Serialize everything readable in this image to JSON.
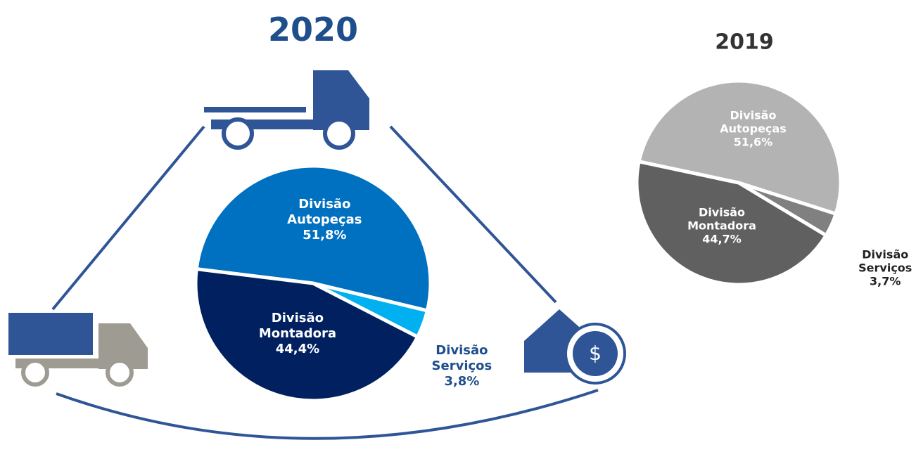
{
  "chart_data": [
    {
      "type": "pie",
      "title": "2020",
      "categories": [
        "Divisão Autopeças",
        "Divisão Serviços",
        "Divisão Montadora"
      ],
      "values": [
        51.8,
        3.8,
        44.4
      ],
      "value_labels": [
        "51,8%",
        "3,8%",
        "44,4%"
      ],
      "colors": [
        "#0070c0",
        "#00b0f0",
        "#002060"
      ]
    },
    {
      "type": "pie",
      "title": "2019",
      "categories": [
        "Divisão Autopeças",
        "Divisão Serviços",
        "Divisão Montadora"
      ],
      "values": [
        51.6,
        3.7,
        44.7
      ],
      "value_labels": [
        "51,6%",
        "3,7%",
        "44,7%"
      ],
      "colors": [
        "#b3b3b3",
        "#808080",
        "#606060"
      ]
    }
  ]
}
